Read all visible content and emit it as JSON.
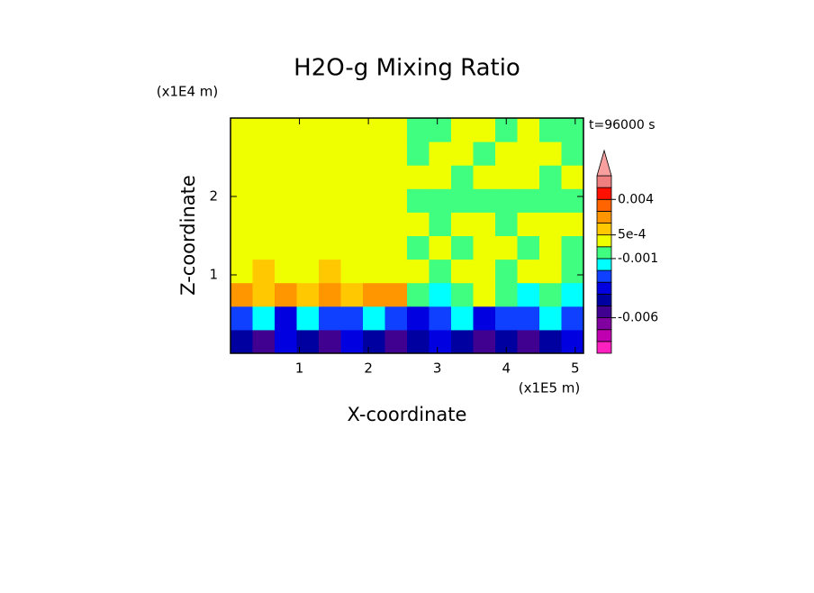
{
  "chart_data": {
    "type": "contour",
    "title": "H2O-g Mixing Ratio",
    "xlabel": "X-coordinate",
    "ylabel": "Z-coordinate",
    "x_unit": "(x1E5 m)",
    "y_unit": "(x1E4 m)",
    "annotation": "t=96000 s",
    "xlim": [
      0,
      5.12
    ],
    "ylim": [
      0,
      3
    ],
    "xticks": [
      1,
      2,
      3,
      4,
      5
    ],
    "yticks": [
      1,
      2
    ],
    "x": [
      0.16,
      0.48,
      0.8,
      1.12,
      1.44,
      1.76,
      2.08,
      2.4,
      2.72,
      3.04,
      3.36,
      3.68,
      4.0,
      4.32,
      4.64,
      4.96
    ],
    "z": [
      0.15,
      0.45,
      0.75,
      1.05,
      1.35,
      1.65,
      1.95,
      2.25,
      2.55,
      2.85
    ],
    "values": [
      [
        -0.0045,
        -0.0055,
        -0.0035,
        -0.0045,
        -0.0055,
        -0.0035,
        -0.0045,
        -0.0055,
        -0.0045,
        -0.0035,
        -0.0045,
        -0.0055,
        -0.0045,
        -0.0055,
        -0.0045,
        -0.0035
      ],
      [
        -0.0025,
        -0.0015,
        -0.0035,
        -0.0015,
        -0.0025,
        -0.0025,
        -0.0015,
        -0.0025,
        -0.0035,
        -0.0025,
        -0.0015,
        -0.0035,
        -0.0025,
        -0.0025,
        -0.0015,
        -0.0025
      ],
      [
        0.0015,
        0.0008,
        0.0015,
        0.0008,
        0.0012,
        0.0008,
        0.0015,
        0.0012,
        -0.0005,
        -0.0015,
        -0.0005,
        0.0003,
        -0.0005,
        -0.0015,
        -0.0005,
        -0.0015
      ],
      [
        0.0003,
        0.0008,
        0.0003,
        0.0003,
        0.0008,
        0.0003,
        0.0003,
        0.0003,
        0.0003,
        -0.0005,
        0.0003,
        0.0003,
        -0.0005,
        0.0003,
        0.0003,
        -0.0005
      ],
      [
        0.0003,
        0.0003,
        0.0003,
        0.0003,
        0.0003,
        0.0003,
        0.0003,
        0.0003,
        -0.0005,
        0.0003,
        -0.0005,
        0.0003,
        0.0003,
        -0.0005,
        0.0003,
        -0.0005
      ],
      [
        0.0003,
        0.0003,
        0.0003,
        0.0003,
        0.0003,
        0.0003,
        0.0003,
        0.0003,
        0.0003,
        -0.0005,
        0.0003,
        0.0003,
        -0.0005,
        0.0003,
        0.0003,
        0.0003
      ],
      [
        0.0003,
        0.0003,
        0.0003,
        0.0003,
        0.0003,
        0.0003,
        0.0003,
        0.0003,
        -0.0005,
        -0.0005,
        -0.0005,
        -0.0005,
        -0.0005,
        -0.0005,
        -0.0005,
        -0.0005
      ],
      [
        0.0003,
        0.0003,
        0.0003,
        0.0003,
        0.0003,
        0.0003,
        0.0003,
        0.0003,
        0.0003,
        0.0003,
        -0.0005,
        0.0003,
        0.0003,
        0.0003,
        -0.0005,
        0.0003
      ],
      [
        0.0003,
        0.0003,
        0.0003,
        0.0003,
        0.0003,
        0.0003,
        0.0003,
        0.0003,
        -0.0005,
        0.0003,
        0.0003,
        -0.0005,
        0.0003,
        0.0003,
        0.0003,
        -0.0005
      ],
      [
        0.0003,
        0.0003,
        0.0003,
        0.0003,
        0.0003,
        0.0003,
        0.0003,
        0.0003,
        -0.0005,
        -0.0005,
        0.0003,
        0.0003,
        -0.0005,
        0.0003,
        -0.0005,
        -0.0005
      ]
    ],
    "levels": [
      -0.009,
      -0.008,
      -0.007,
      -0.006,
      -0.005,
      -0.004,
      -0.003,
      -0.002,
      -0.001,
      0,
      0.0005,
      0.001,
      0.002,
      0.004,
      0.006,
      0.008
    ],
    "colors": [
      "#ff20c0",
      "#c000b0",
      "#8000a0",
      "#400090",
      "#0000a0",
      "#0000e0",
      "#1040ff",
      "#00ffff",
      "#40ff80",
      "#f0ff00",
      "#ffc800",
      "#ff9600",
      "#ff6400",
      "#ff1000",
      "#f08080"
    ],
    "extend_color": "#f8a0a0",
    "colorbar_ticks": [
      0.004,
      {
        "value": 0.0005,
        "label": "5e-4"
      },
      -0.001,
      -0.006
    ]
  }
}
